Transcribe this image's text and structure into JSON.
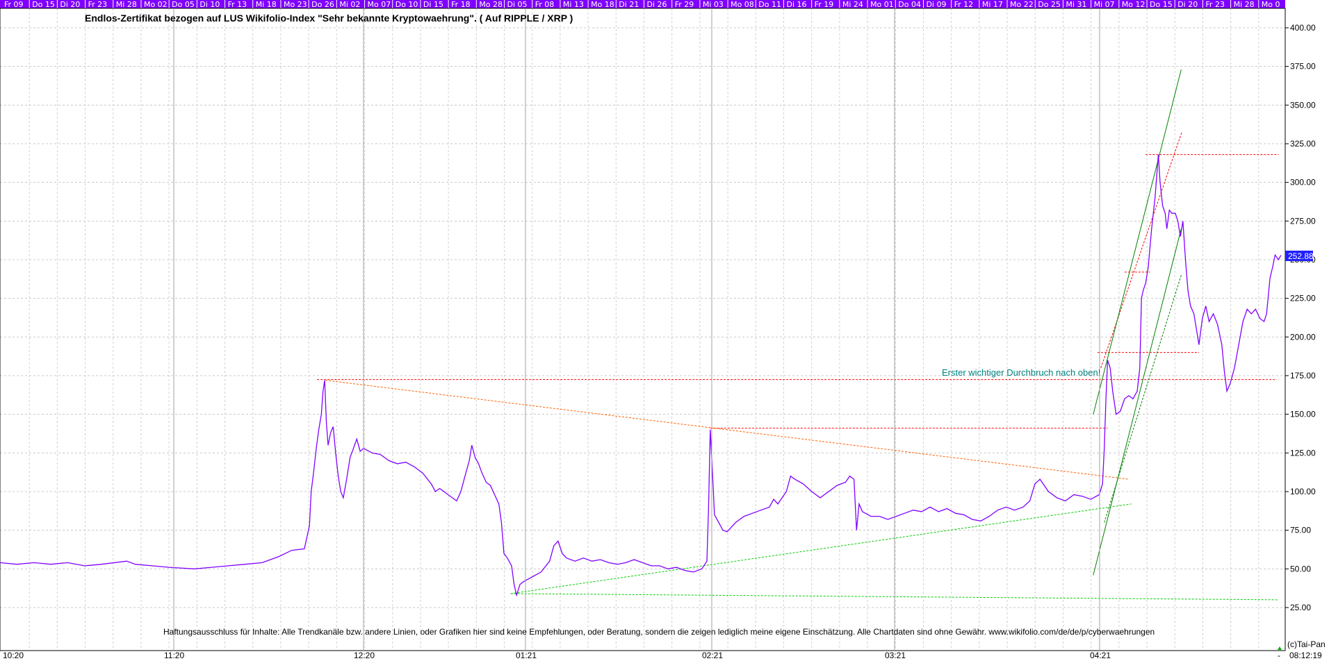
{
  "chart_data": {
    "type": "line",
    "title": "Endlos-Zertifikat bezogen auf LUS Wikifolio-Index \"Sehr bekannte Kryptowaehrung\". ( Auf RIPPLE / XRP )",
    "xlabel": "",
    "ylabel": "",
    "ylim": [
      10,
      420
    ],
    "yticks": [
      "25.00",
      "50.00",
      "75.00",
      "100.00",
      "125.00",
      "150.00",
      "175.00",
      "200.00",
      "225.00",
      "250.00",
      "275.00",
      "300.00",
      "325.00",
      "350.00",
      "375.00",
      "400.00"
    ],
    "top_dates": [
      "Fr 09",
      "Do 15",
      "Di 20",
      "Fr 23",
      "Mi 28",
      "Mo 02",
      "Do 05",
      "Di 10",
      "Fr 13",
      "Mi 18",
      "Mo 23",
      "Do 26",
      "Mi 02",
      "Mo 07",
      "Do 10",
      "Di 15",
      "Fr 18",
      "Mo 28",
      "Di 05",
      "Fr 08",
      "Mi 13",
      "Mo 18",
      "Di 21",
      "Di 26",
      "Fr 29",
      "Mi 03",
      "Mo 08",
      "Do 11",
      "Di 16",
      "Fr 19",
      "Mi 24",
      "Mo 01",
      "Do 04",
      "Di 09",
      "Fr 12",
      "Mi 17",
      "Mo 22",
      "Do 25",
      "Mi 31",
      "Mi 07",
      "Mo 12",
      "Do 15",
      "Di 20",
      "Fr 23",
      "Mi 28",
      "Mo 0"
    ],
    "x_month_labels": [
      "10:20",
      "11:20",
      "12:20",
      "01:21",
      "02:21",
      "03:21",
      "04:21"
    ],
    "time_label": "08:12:19",
    "copyright": "(c)Tai-Pan",
    "dash_label": "-",
    "grid": true,
    "last_value": "252.88",
    "annotation": "Erster wichtiger Durchbruch nach oben!",
    "disclaimer": "Haftungsausschluss für Inhalte: Alle Trendkanäle bzw. andere Linien, oder Grafiken hier sind keine Empfehlungen, oder Beratung, sondern die zeigen lediglich meine eigene Einschätzung. Alle Chartdaten sind ohne Gewähr.  www.wikifolio.com/de/de/p/cyberwaehrungen",
    "series": [
      {
        "color": "#8000ff",
        "points": [
          [
            0,
            54
          ],
          [
            20,
            53
          ],
          [
            40,
            54
          ],
          [
            60,
            53
          ],
          [
            80,
            54
          ],
          [
            100,
            52
          ],
          [
            120,
            53
          ],
          [
            150,
            55
          ],
          [
            160,
            53
          ],
          [
            180,
            52
          ],
          [
            200,
            51
          ],
          [
            230,
            50
          ],
          [
            250,
            51
          ],
          [
            270,
            52
          ],
          [
            290,
            53
          ],
          [
            310,
            54
          ],
          [
            330,
            58
          ],
          [
            345,
            62
          ],
          [
            360,
            63
          ],
          [
            366,
            78
          ],
          [
            368,
            100
          ],
          [
            371,
            113
          ],
          [
            374,
            128
          ],
          [
            377,
            140
          ],
          [
            380,
            150
          ],
          [
            382,
            165
          ],
          [
            384,
            172
          ],
          [
            386,
            145
          ],
          [
            388,
            130
          ],
          [
            391,
            138
          ],
          [
            394,
            142
          ],
          [
            397,
            125
          ],
          [
            400,
            110
          ],
          [
            403,
            100
          ],
          [
            406,
            96
          ],
          [
            410,
            108
          ],
          [
            414,
            122
          ],
          [
            418,
            128
          ],
          [
            422,
            134
          ],
          [
            426,
            126
          ],
          [
            430,
            128
          ],
          [
            440,
            125
          ],
          [
            450,
            124
          ],
          [
            460,
            120
          ],
          [
            470,
            118
          ],
          [
            480,
            119
          ],
          [
            490,
            116
          ],
          [
            500,
            112
          ],
          [
            510,
            105
          ],
          [
            515,
            100
          ],
          [
            520,
            102
          ],
          [
            530,
            98
          ],
          [
            540,
            94
          ],
          [
            545,
            100
          ],
          [
            550,
            110
          ],
          [
            555,
            120
          ],
          [
            558,
            130
          ],
          [
            562,
            122
          ],
          [
            566,
            118
          ],
          [
            570,
            112
          ],
          [
            575,
            106
          ],
          [
            580,
            104
          ],
          [
            585,
            98
          ],
          [
            590,
            92
          ],
          [
            593,
            80
          ],
          [
            596,
            60
          ],
          [
            600,
            57
          ],
          [
            605,
            52
          ],
          [
            608,
            40
          ],
          [
            611,
            33
          ],
          [
            615,
            40
          ],
          [
            620,
            42
          ],
          [
            630,
            45
          ],
          [
            640,
            48
          ],
          [
            650,
            55
          ],
          [
            655,
            65
          ],
          [
            660,
            68
          ],
          [
            665,
            60
          ],
          [
            670,
            57
          ],
          [
            680,
            55
          ],
          [
            690,
            57
          ],
          [
            700,
            55
          ],
          [
            710,
            56
          ],
          [
            720,
            54
          ],
          [
            730,
            53
          ],
          [
            740,
            54
          ],
          [
            750,
            56
          ],
          [
            760,
            54
          ],
          [
            770,
            52
          ],
          [
            780,
            52
          ],
          [
            790,
            50
          ],
          [
            800,
            51
          ],
          [
            810,
            49
          ],
          [
            820,
            48
          ],
          [
            830,
            50
          ],
          [
            836,
            55
          ],
          [
            838,
            90
          ],
          [
            840,
            140
          ],
          [
            842,
            120
          ],
          [
            845,
            85
          ],
          [
            850,
            80
          ],
          [
            855,
            75
          ],
          [
            860,
            74
          ],
          [
            870,
            80
          ],
          [
            880,
            84
          ],
          [
            890,
            86
          ],
          [
            900,
            88
          ],
          [
            910,
            90
          ],
          [
            915,
            95
          ],
          [
            920,
            92
          ],
          [
            930,
            100
          ],
          [
            935,
            110
          ],
          [
            940,
            108
          ],
          [
            950,
            105
          ],
          [
            960,
            100
          ],
          [
            970,
            96
          ],
          [
            980,
            100
          ],
          [
            990,
            104
          ],
          [
            1000,
            106
          ],
          [
            1005,
            110
          ],
          [
            1010,
            108
          ],
          [
            1013,
            75
          ],
          [
            1016,
            92
          ],
          [
            1020,
            87
          ],
          [
            1030,
            84
          ],
          [
            1040,
            84
          ],
          [
            1050,
            82
          ],
          [
            1060,
            84
          ],
          [
            1070,
            86
          ],
          [
            1080,
            88
          ],
          [
            1090,
            87
          ],
          [
            1100,
            90
          ],
          [
            1110,
            87
          ],
          [
            1120,
            89
          ],
          [
            1130,
            86
          ],
          [
            1140,
            85
          ],
          [
            1150,
            82
          ],
          [
            1160,
            81
          ],
          [
            1170,
            84
          ],
          [
            1180,
            88
          ],
          [
            1190,
            90
          ],
          [
            1200,
            88
          ],
          [
            1210,
            90
          ],
          [
            1218,
            94
          ],
          [
            1224,
            105
          ],
          [
            1230,
            108
          ],
          [
            1240,
            100
          ],
          [
            1250,
            96
          ],
          [
            1260,
            94
          ],
          [
            1270,
            98
          ],
          [
            1280,
            97
          ],
          [
            1290,
            95
          ],
          [
            1300,
            98
          ],
          [
            1304,
            105
          ],
          [
            1306,
            128
          ],
          [
            1308,
            160
          ],
          [
            1310,
            185
          ],
          [
            1313,
            180
          ],
          [
            1316,
            165
          ],
          [
            1320,
            150
          ],
          [
            1325,
            152
          ],
          [
            1330,
            160
          ],
          [
            1335,
            162
          ],
          [
            1340,
            160
          ],
          [
            1345,
            165
          ],
          [
            1348,
            180
          ],
          [
            1350,
            225
          ],
          [
            1352,
            230
          ],
          [
            1355,
            235
          ],
          [
            1358,
            245
          ],
          [
            1362,
            270
          ],
          [
            1366,
            290
          ],
          [
            1370,
            318
          ],
          [
            1372,
            300
          ],
          [
            1375,
            285
          ],
          [
            1378,
            280
          ],
          [
            1380,
            270
          ],
          [
            1383,
            282
          ],
          [
            1386,
            280
          ],
          [
            1390,
            280
          ],
          [
            1393,
            275
          ],
          [
            1396,
            265
          ],
          [
            1399,
            275
          ],
          [
            1402,
            250
          ],
          [
            1405,
            230
          ],
          [
            1408,
            220
          ],
          [
            1412,
            215
          ],
          [
            1415,
            205
          ],
          [
            1418,
            195
          ],
          [
            1422,
            212
          ],
          [
            1426,
            220
          ],
          [
            1430,
            210
          ],
          [
            1435,
            215
          ],
          [
            1440,
            208
          ],
          [
            1445,
            195
          ],
          [
            1448,
            178
          ],
          [
            1451,
            165
          ],
          [
            1455,
            170
          ],
          [
            1460,
            180
          ],
          [
            1465,
            195
          ],
          [
            1470,
            210
          ],
          [
            1475,
            218
          ],
          [
            1480,
            215
          ],
          [
            1485,
            218
          ],
          [
            1490,
            212
          ],
          [
            1495,
            210
          ],
          [
            1498,
            215
          ],
          [
            1502,
            238
          ],
          [
            1505,
            245
          ],
          [
            1508,
            253
          ],
          [
            1512,
            250
          ],
          [
            1515,
            252.88
          ]
        ]
      }
    ],
    "lines": [
      {
        "color": "#ff0000",
        "dash": true,
        "points": [
          [
            375,
            172.5
          ],
          [
            1510,
            172.5
          ]
        ]
      },
      {
        "color": "#ff0000",
        "dash": true,
        "points": [
          [
            840,
            141
          ],
          [
            1310,
            141
          ]
        ]
      },
      {
        "color": "#ff0000",
        "dash": true,
        "points": [
          [
            1298,
            190
          ],
          [
            1418,
            190
          ]
        ]
      },
      {
        "color": "#ff0000",
        "dash": true,
        "points": [
          [
            1330,
            242
          ],
          [
            1360,
            242
          ]
        ]
      },
      {
        "color": "#ff0000",
        "dash": true,
        "points": [
          [
            1355,
            318
          ],
          [
            1512,
            318
          ]
        ]
      },
      {
        "color": "#ff6000",
        "dash": true,
        "points": [
          [
            385,
            172
          ],
          [
            1335,
            108
          ]
        ]
      },
      {
        "color": "#ff0000",
        "dash": true,
        "points": [
          [
            1302,
            180
          ],
          [
            1398,
            333
          ]
        ]
      },
      {
        "color": "#00cc00",
        "dash": true,
        "points": [
          [
            604,
            34
          ],
          [
            1338,
            92
          ]
        ]
      },
      {
        "color": "#00cc00",
        "dash": true,
        "points": [
          [
            604,
            34
          ],
          [
            1512,
            30
          ]
        ]
      },
      {
        "color": "#008000",
        "dash": false,
        "points": [
          [
            1293,
            150
          ],
          [
            1397,
            373
          ]
        ]
      },
      {
        "color": "#008000",
        "dash": false,
        "points": [
          [
            1293,
            46
          ],
          [
            1397,
            270
          ]
        ]
      },
      {
        "color": "#008000",
        "dash": true,
        "points": [
          [
            1306,
            80
          ],
          [
            1397,
            240
          ]
        ]
      }
    ]
  }
}
